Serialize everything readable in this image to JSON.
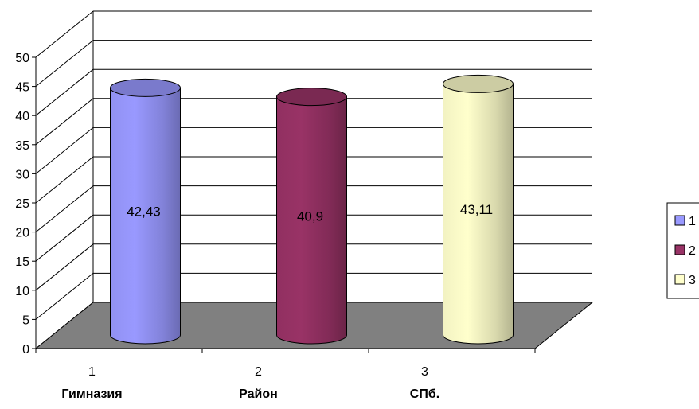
{
  "chart_data": {
    "type": "bar",
    "style": "3d-cylinder",
    "ylim": [
      0,
      50
    ],
    "y_ticks": [
      "0",
      "5",
      "10",
      "15",
      "20",
      "25",
      "30",
      "35",
      "40",
      "45",
      "50"
    ],
    "categories": [
      {
        "number": "1",
        "name": "Гимназия"
      },
      {
        "number": "2",
        "name": "Район"
      },
      {
        "number": "3",
        "name": "СПб."
      }
    ],
    "values": [
      42.43,
      40.9,
      43.11
    ],
    "data_labels": [
      "42,43",
      "40,9",
      "43,11"
    ],
    "colors": [
      "#9999ff",
      "#993366",
      "#ffffcc"
    ],
    "legend": {
      "position": "right",
      "entries": [
        "1",
        "2",
        "3"
      ]
    },
    "grid": true,
    "floor_color": "#808080"
  }
}
